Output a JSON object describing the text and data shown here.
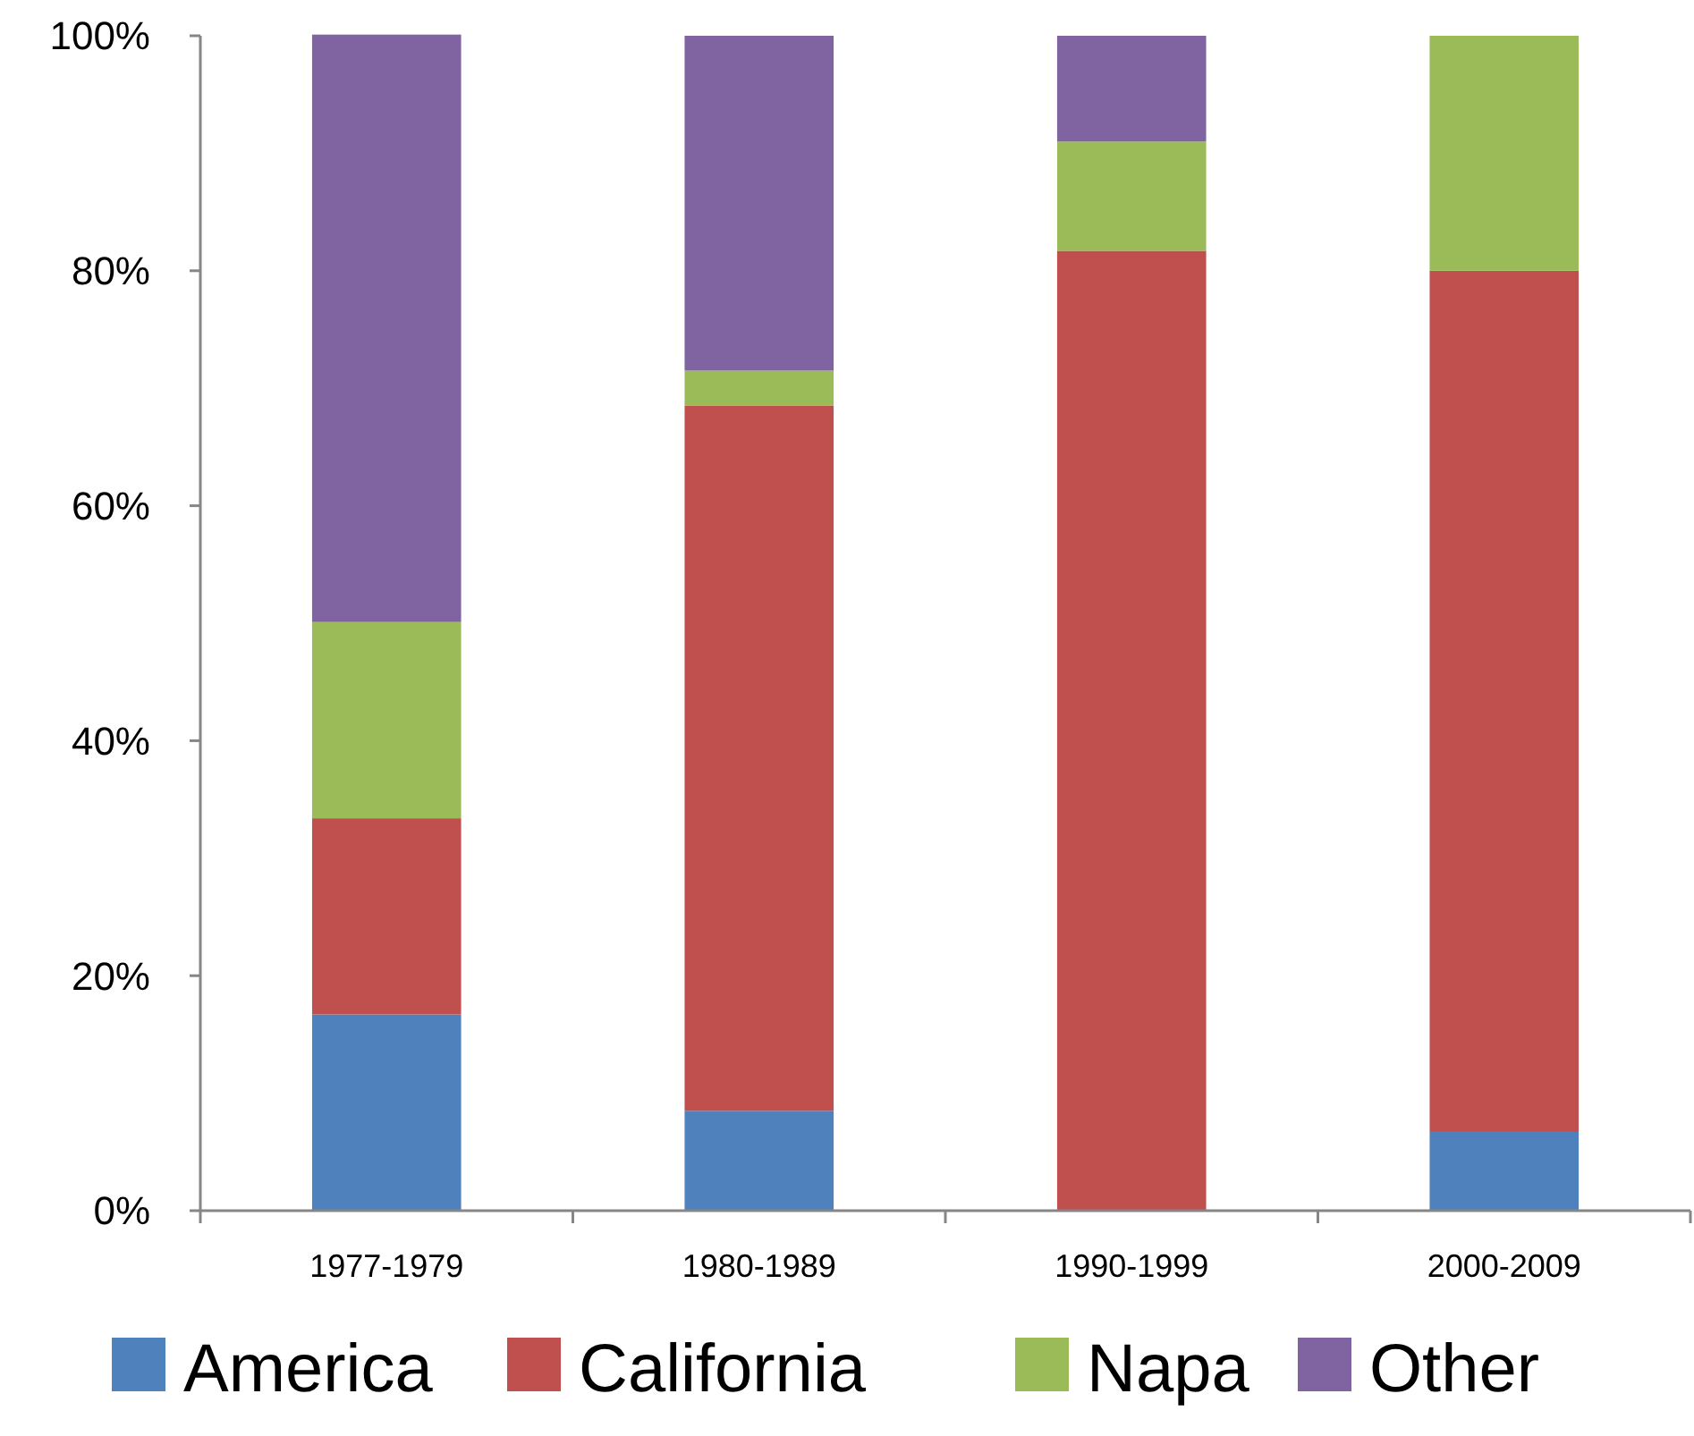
{
  "chart_data": {
    "type": "bar",
    "stacked": true,
    "categories": [
      "1977-1979",
      "1980-1989",
      "1990-1999",
      "2000-2009"
    ],
    "series": [
      {
        "name": "America",
        "color": "#4f81bd",
        "values": [
          16.7,
          8.5,
          0,
          6.7
        ]
      },
      {
        "name": "California",
        "color": "#c0504d",
        "values": [
          16.7,
          60,
          81.7,
          73.3
        ]
      },
      {
        "name": "Napa",
        "color": "#9bbb59",
        "values": [
          16.7,
          3,
          9.3,
          20
        ]
      },
      {
        "name": "Other",
        "color": "#8064a2",
        "values": [
          50,
          28.5,
          9,
          0
        ]
      }
    ],
    "ylim": [
      0,
      100
    ],
    "yticks": [
      {
        "value": 0,
        "label": "0%"
      },
      {
        "value": 20,
        "label": "20%"
      },
      {
        "value": 40,
        "label": "40%"
      },
      {
        "value": 60,
        "label": "60%"
      },
      {
        "value": 80,
        "label": "80%"
      },
      {
        "value": 100,
        "label": "100%"
      }
    ],
    "grid": false,
    "legend": "bottom"
  }
}
